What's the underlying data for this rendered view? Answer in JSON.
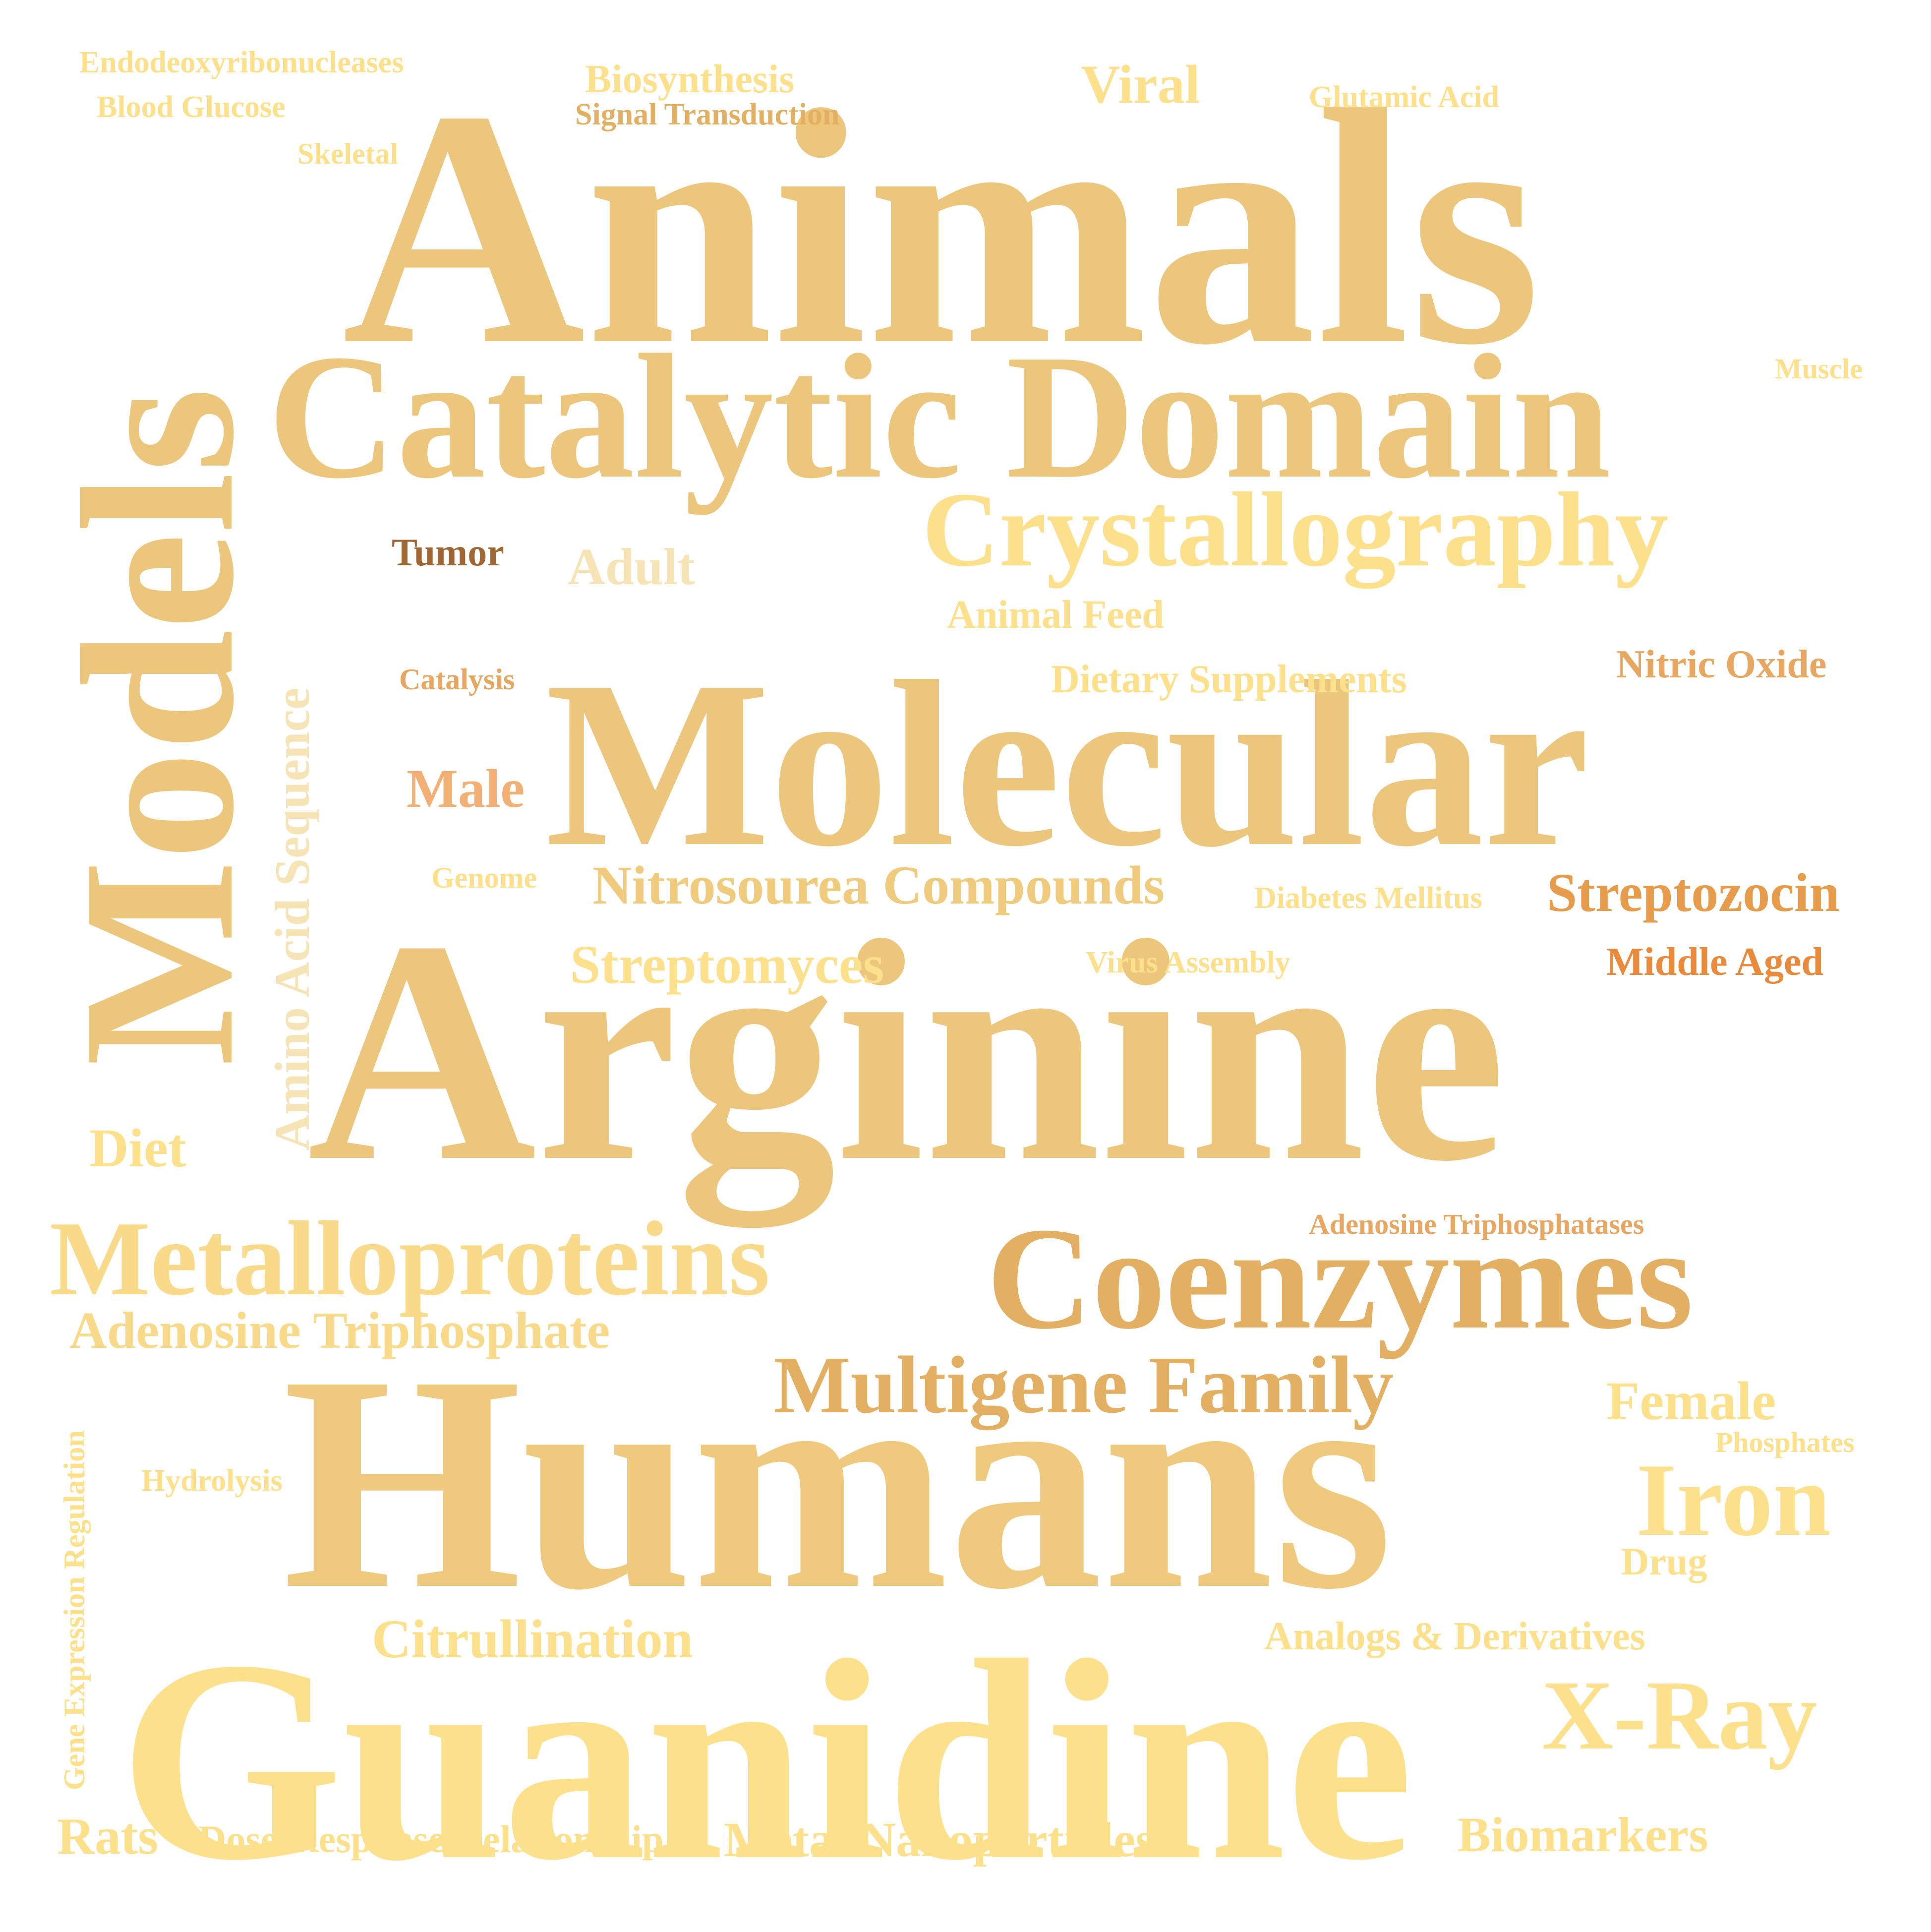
{
  "palette": {
    "gold": "#ECC67C",
    "light_gold": "#F9DA8A",
    "yellow": "#FDE08C",
    "tan": "#E2AF63",
    "beige": "#F6E3B6",
    "brown": "#A06633",
    "orange": "#E98A3C",
    "peach": "#F3B074",
    "amber": "#E79C4C"
  },
  "words": {
    "animals": "Animals",
    "catalytic_domain": "Catalytic Domain",
    "crystallography": "Crystallography",
    "molecular": "Molecular",
    "arginine": "Arginine",
    "models": "Models",
    "amino_acid_sequence": "Amino Acid Sequence",
    "coenzymes": "Coenzymes",
    "metalloproteins": "Metalloproteins",
    "adenosine_triphosphate": "Adenosine Triphosphate",
    "multigene_family": "Multigene Family",
    "humans": "Humans",
    "guanidine": "Guanidine",
    "x_ray": "X-Ray",
    "iron": "Iron",
    "female": "Female",
    "phosphates": "Phosphates",
    "drug": "Drug",
    "citrullination": "Citrullination",
    "analogs_derivatives": "Analogs & Derivatives",
    "biomarkers": "Biomarkers",
    "metal_nanoparticles": "Metal Nanoparticles",
    "rats": "Rats",
    "dose_response": "Dose-Response Relationship",
    "gene_expression_regulation": "Gene Expression Regulation",
    "hydrolysis": "Hydrolysis",
    "diet": "Diet",
    "streptomyces": "Streptomyces",
    "virus_assembly": "Virus Assembly",
    "middle_aged": "Middle Aged",
    "streptozocin": "Streptozocin",
    "diabetes_mellitus": "Diabetes Mellitus",
    "nitrosourea_compounds": "Nitrosourea Compounds",
    "genome": "Genome",
    "male": "Male",
    "catalysis": "Catalysis",
    "dietary_supplements": "Dietary Supplements",
    "nitric_oxide": "Nitric Oxide",
    "animal_feed": "Animal Feed",
    "adult": "Adult",
    "tumor": "Tumor",
    "muscle": "Muscle",
    "skeletal": "Skeletal",
    "blood_glucose": "Blood Glucose",
    "endodeoxyribonucleases": "Endodeoxyribonucleases",
    "biosynthesis": "Biosynthesis",
    "signal_transduction": "Signal Transduction",
    "viral": "Viral",
    "glutamic_acid": "Glutamic Acid",
    "adenosine_triphosphatases": "Adenosine Triphosphatases"
  }
}
